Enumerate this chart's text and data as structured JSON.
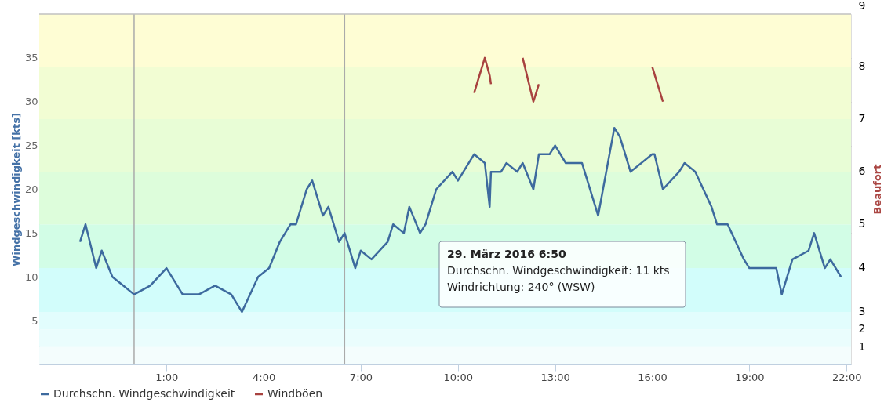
{
  "chart_data": {
    "type": "line",
    "ylabel": "Windgeschwindigkeit [kts]",
    "y2label": "Beaufort",
    "xlim": [
      -2.93,
      22.14
    ],
    "ylim": [
      0,
      40
    ],
    "xticks": [
      {
        "value": 1,
        "label": "1:00"
      },
      {
        "value": 4,
        "label": "4:00"
      },
      {
        "value": 7,
        "label": "7:00"
      },
      {
        "value": 10,
        "label": "10:00"
      },
      {
        "value": 13,
        "label": "13:00"
      },
      {
        "value": 16,
        "label": "16:00"
      },
      {
        "value": 19,
        "label": "19:00"
      },
      {
        "value": 22,
        "label": "22:00"
      }
    ],
    "yticks": [
      5,
      10,
      15,
      20,
      25,
      30,
      35
    ],
    "grid": "y",
    "legend": "bottom left",
    "marker": "none",
    "line_style": "solid",
    "series": [
      {
        "name": "Durchschn. Windgeschwindigkeit",
        "color": "#3d6a9e",
        "x": [
          -1.67,
          -1.5,
          -1.17,
          -1.0,
          -0.67,
          -0.33,
          0.0,
          0.5,
          1.0,
          1.5,
          2.0,
          2.5,
          3.0,
          3.33,
          3.83,
          4.17,
          4.5,
          4.83,
          5.0,
          5.33,
          5.5,
          5.83,
          6.0,
          6.33,
          6.5,
          6.83,
          7.0,
          7.33,
          7.83,
          8.0,
          8.33,
          8.5,
          8.83,
          9.0,
          9.33,
          9.83,
          10.0,
          10.5,
          10.83,
          10.98,
          11.02,
          11.33,
          11.5,
          11.83,
          12.0,
          12.33,
          12.5,
          12.83,
          13.0,
          13.33,
          13.83,
          14.33,
          14.83,
          15.0,
          15.33,
          16.0,
          16.07,
          16.33,
          16.83,
          17.0,
          17.33,
          17.83,
          18.0,
          18.33,
          18.83,
          19.0,
          19.83,
          20.0,
          20.33,
          20.83,
          21.0,
          21.33,
          21.5,
          21.83
        ],
        "values": [
          14,
          16,
          11,
          13,
          10,
          9,
          8,
          9,
          11,
          8,
          8,
          9,
          8,
          6,
          10,
          11,
          14,
          16,
          16,
          20,
          21,
          17,
          18,
          14,
          15,
          11,
          13,
          12,
          14,
          16,
          15,
          18,
          15,
          16,
          20,
          22,
          21,
          24,
          23,
          18,
          22,
          22,
          23,
          22,
          23,
          20,
          24,
          24,
          25,
          23,
          23,
          17,
          27,
          26,
          22,
          24,
          24,
          20,
          22,
          23,
          22,
          18,
          16,
          16,
          12,
          11,
          11,
          8,
          12,
          13,
          15,
          11,
          12,
          10
        ]
      },
      {
        "name": "Windböen",
        "color": "#a8423f",
        "x": [
          10.5,
          10.83,
          10.98,
          11.02,
          11.33,
          12.0,
          12.33,
          12.5,
          12.83,
          16.0,
          16.33
        ],
        "values": [
          31,
          35,
          33,
          32,
          null,
          35,
          30,
          32,
          null,
          34,
          30
        ]
      }
    ],
    "bands": [
      {
        "axis": "y",
        "from": 0,
        "to": 2,
        "color": "#f4fdfd"
      },
      {
        "axis": "y",
        "from": 2,
        "to": 4,
        "color": "#eafdfd",
        "label": "1"
      },
      {
        "axis": "y",
        "from": 4,
        "to": 6,
        "color": "#e2fdfd",
        "label": "2"
      },
      {
        "axis": "y",
        "from": 6,
        "to": 11,
        "color": "#d2fdfb",
        "label": "3"
      },
      {
        "axis": "y",
        "from": 11,
        "to": 16,
        "color": "#d2fde6",
        "label": "4"
      },
      {
        "axis": "y",
        "from": 16,
        "to": 22,
        "color": "#ddfddb",
        "label": "5"
      },
      {
        "axis": "y",
        "from": 22,
        "to": 28,
        "color": "#e8fdd6",
        "label": "6"
      },
      {
        "axis": "y",
        "from": 28,
        "to": 34,
        "color": "#f2fdd3",
        "label": "7"
      },
      {
        "axis": "y",
        "from": 34,
        "to": 40,
        "color": "#fefdd4",
        "label": "8"
      }
    ],
    "ref_lines": [
      {
        "axis": "x",
        "value": 0.0,
        "color": "#aaaaaa"
      },
      {
        "axis": "x",
        "value": 6.5,
        "color": "#aaaaaa"
      },
      {
        "axis": "y",
        "value": 40,
        "color": "#c0c0c0"
      }
    ],
    "annotations": [
      "29. März 2016 6:50",
      "Durchschn. Windgeschwindigkeit: 11 kts",
      "Windrichtung: 240° (WSW)",
      "9"
    ]
  }
}
